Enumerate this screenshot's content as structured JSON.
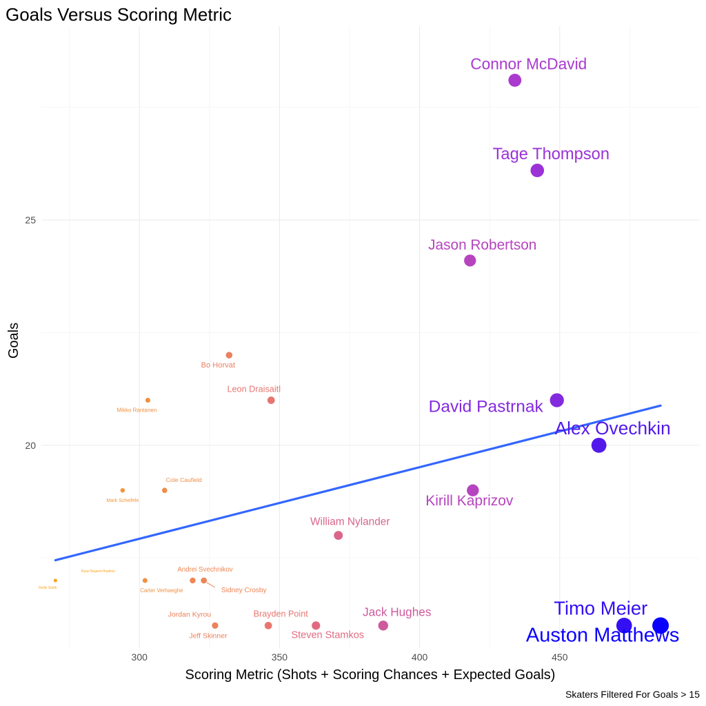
{
  "chart_data": {
    "type": "scatter",
    "title": "Goals Versus Scoring Metric",
    "xlabel": "Scoring Metric (Shots + Scoring Chances + Expected Goals)",
    "ylabel": "Goals",
    "caption": "Skaters Filtered For Goals > 15",
    "xlim": [
      265,
      500
    ],
    "ylim": [
      15.5,
      29.3
    ],
    "x_ticks": [
      300,
      350,
      400,
      450
    ],
    "y_ticks": [
      20,
      25
    ],
    "grid": true,
    "points": [
      {
        "label": "Connor McDavid",
        "x": 434,
        "y": 28.1
      },
      {
        "label": "Tage Thompson",
        "x": 442,
        "y": 26.1
      },
      {
        "label": "Jason Robertson",
        "x": 418,
        "y": 24.1
      },
      {
        "label": "Bo Horvat",
        "x": 332,
        "y": 22.0
      },
      {
        "label": "Leon Draisaitl",
        "x": 347,
        "y": 21.0
      },
      {
        "label": "Mikko Rantanen",
        "x": 303,
        "y": 21.0
      },
      {
        "label": "David Pastrnak",
        "x": 449,
        "y": 21.0
      },
      {
        "label": "Alex Ovechkin",
        "x": 464,
        "y": 20.0
      },
      {
        "label": "Cole Caufield",
        "x": 309,
        "y": 19.0
      },
      {
        "label": "Mark Scheifele",
        "x": 294,
        "y": 19.0
      },
      {
        "label": "Kirill Kaprizov",
        "x": 419,
        "y": 19.0
      },
      {
        "label": "William Nylander",
        "x": 371,
        "y": 18.0
      },
      {
        "label": "Ryan Nugent-Hopkins",
        "x": 270,
        "y": 17.0
      },
      {
        "label": "Reilly Smith",
        "x": 270,
        "y": 17.0
      },
      {
        "label": "Carter Verhaeghe",
        "x": 302,
        "y": 17.0
      },
      {
        "label": "Andrei Svechnikov",
        "x": 319,
        "y": 17.0
      },
      {
        "label": "Sidney Crosby",
        "x": 323,
        "y": 17.0
      },
      {
        "label": "Jordan Kyrou",
        "x": 327,
        "y": 16.0
      },
      {
        "label": "Jeff Skinner",
        "x": 327,
        "y": 16.0
      },
      {
        "label": "Brayden Point",
        "x": 346,
        "y": 16.0
      },
      {
        "label": "Steven Stamkos",
        "x": 363,
        "y": 16.0
      },
      {
        "label": "Jack Hughes",
        "x": 387,
        "y": 16.0
      },
      {
        "label": "Timo Meier",
        "x": 473,
        "y": 16.0
      },
      {
        "label": "Auston Matthews",
        "x": 486,
        "y": 16.0
      }
    ],
    "trend_line": {
      "x": [
        270,
        486
      ],
      "y": [
        17.45,
        20.88
      ],
      "color": "#3366FF"
    },
    "color_scale": {
      "low": "#f7a520",
      "mid": "#a736d4",
      "high": "#0a00ff"
    }
  }
}
